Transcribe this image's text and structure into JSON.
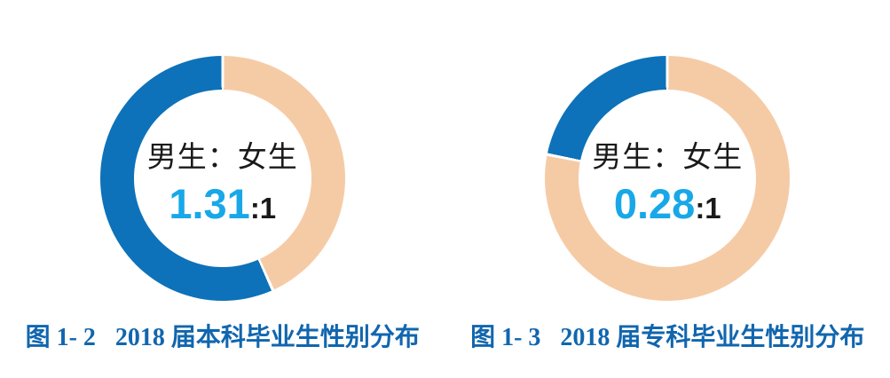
{
  "page": {
    "background": "#ffffff"
  },
  "colors": {
    "male_blue": "#0d72b9",
    "female_peach": "#f5cba6",
    "ratio_cyan": "#18a8e8",
    "caption_blue": "#1166ae",
    "text_black": "#1a1a1a",
    "background": "#ffffff"
  },
  "chart_data": [
    {
      "type": "pie",
      "subtype": "donut",
      "title": "图 1- 2　2018 届本科毕业生性别分布",
      "categories": [
        "男生",
        "女生"
      ],
      "values": [
        1.31,
        1
      ],
      "male_share_pct": 56.7,
      "female_share_pct": 43.3,
      "slice_colors": [
        "#0d72b9",
        "#f5cba6"
      ],
      "start_angle_deg": 0,
      "male_slice_direction": "counterclockwise-from-top",
      "separator_deg": 0.7,
      "legend": "none",
      "center_label": "男生：女生",
      "ratio_value": "1.31",
      "ratio_suffix": ":1",
      "caption_prefix": "图 1- 2",
      "caption_title": "2018 届本科毕业生性别分布"
    },
    {
      "type": "pie",
      "subtype": "donut",
      "title": "图 1- 3　2018 届专科毕业生性别分布",
      "categories": [
        "男生",
        "女生"
      ],
      "values": [
        0.28,
        1
      ],
      "male_share_pct": 21.9,
      "female_share_pct": 78.1,
      "slice_colors": [
        "#0d72b9",
        "#f5cba6"
      ],
      "start_angle_deg": 0,
      "male_slice_direction": "counterclockwise-from-top",
      "separator_deg": 0.7,
      "legend": "none",
      "center_label": "男生：女生",
      "ratio_value": "0.28",
      "ratio_suffix": ":1",
      "caption_prefix": "图 1- 3",
      "caption_title": "2018 届专科毕业生性别分布"
    }
  ]
}
